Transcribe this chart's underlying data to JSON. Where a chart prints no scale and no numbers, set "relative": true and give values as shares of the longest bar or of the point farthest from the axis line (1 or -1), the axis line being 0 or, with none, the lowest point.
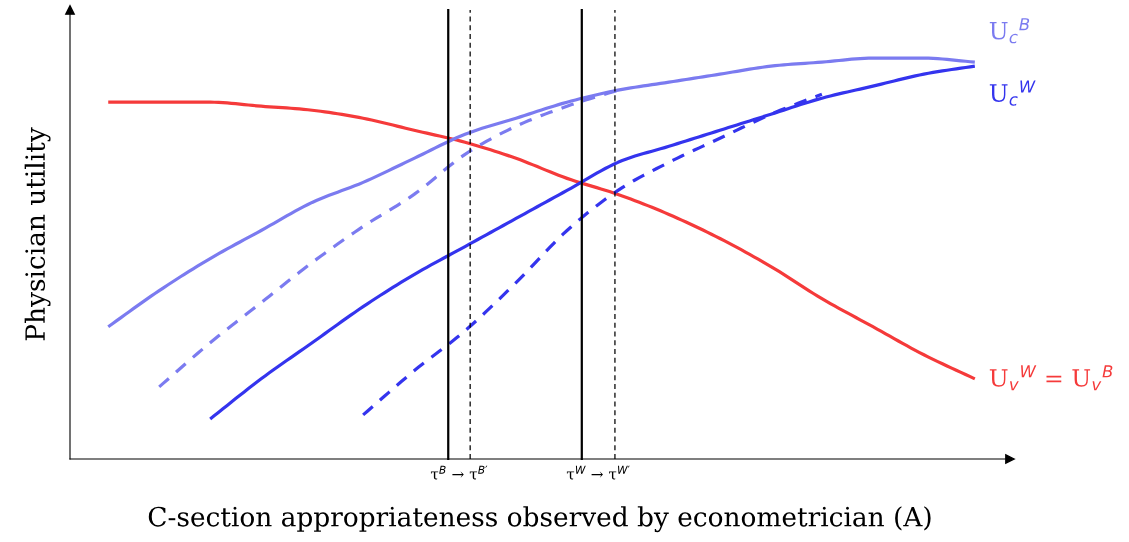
{
  "chart_data": {
    "type": "line",
    "relative": true,
    "xlabel": "C-section appropriateness observed by econometrician (A)",
    "ylabel": "Physician utility",
    "categories": [
      null,
      null,
      null,
      null,
      null,
      null,
      null,
      null,
      null,
      null,
      null,
      null,
      null,
      null,
      null,
      null,
      null,
      null
    ],
    "series": [
      {
        "name": "U$_{v}$$^{W}$ = U$_{v}$$^{B}$",
        "color": "#f53a3a",
        "line_style": "solid",
        "values": [
          0.89,
          0.89,
          0.89,
          0.88,
          0.87,
          0.85,
          0.82,
          0.79,
          0.75,
          0.7,
          0.66,
          0.61,
          0.55,
          0.48,
          0.4,
          0.33,
          0.26,
          0.2
        ]
      },
      {
        "name": "U$_{c}$$^{B}$",
        "color": "#7b7bf0",
        "line_style": "solid",
        "values": [
          0.33,
          0.42,
          0.5,
          0.57,
          0.64,
          0.69,
          0.75,
          0.81,
          0.85,
          0.89,
          0.92,
          0.94,
          0.96,
          0.98,
          0.99,
          1.0,
          1.0,
          0.99
        ]
      },
      {
        "color": "#7b7bf0",
        "line_style": "dashed",
        "values": [
          null,
          0.18,
          0.29,
          0.39,
          0.49,
          0.58,
          0.66,
          0.76,
          0.83,
          0.88,
          0.92,
          null,
          null,
          null,
          null,
          null,
          null,
          null
        ]
      },
      {
        "name": "U$_{c}$$^{W}$",
        "color": "#3434ee",
        "line_style": "solid",
        "values": [
          null,
          null,
          0.1,
          0.2,
          0.29,
          0.38,
          0.46,
          0.53,
          0.6,
          0.67,
          0.74,
          0.78,
          0.82,
          0.86,
          0.9,
          0.93,
          0.96,
          0.98
        ]
      },
      {
        "color": "#3434ee",
        "line_style": "dashed",
        "values": [
          null,
          null,
          null,
          null,
          null,
          0.11,
          0.22,
          0.32,
          0.44,
          0.57,
          0.67,
          0.74,
          0.8,
          0.86,
          0.91,
          null,
          null,
          null
        ]
      }
    ],
    "annotations": [
      "τ$^{B}$ → τ$^{B′}$",
      "τ$^{W}$ → τ$^{W′}$"
    ],
    "legend": false,
    "tick_labels": false,
    "marker": "none"
  }
}
